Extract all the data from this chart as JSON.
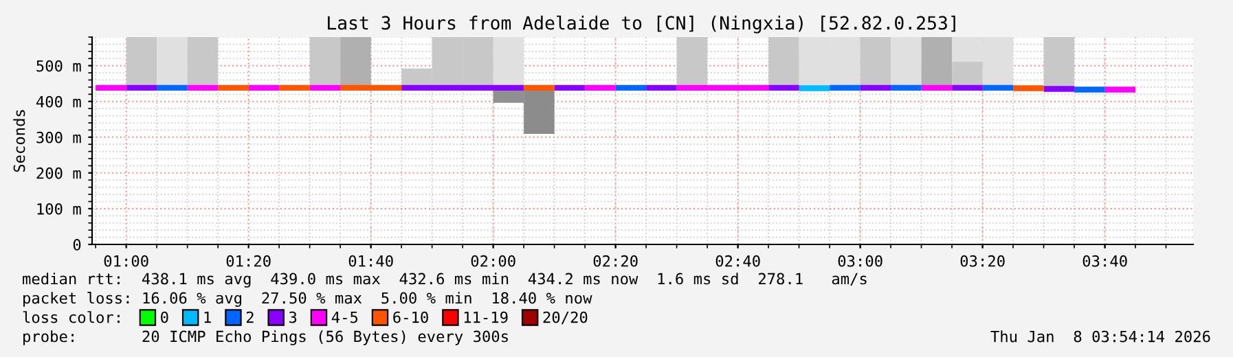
{
  "chart_data": {
    "type": "line",
    "title": "Last 3 Hours from Adelaide to [CN] (Ningxia) [52.82.0.253]",
    "ylabel": "Seconds",
    "legend_title": "loss color:",
    "legend": "bottom",
    "grid": true,
    "xlim": [
      0.907,
      3.907
    ],
    "xticks": [
      {
        "value": 1.0,
        "label": "01:00"
      },
      {
        "value": 1.3333,
        "label": "01:20"
      },
      {
        "value": 1.6667,
        "label": "01:40"
      },
      {
        "value": 2.0,
        "label": "02:00"
      },
      {
        "value": 2.3333,
        "label": "02:20"
      },
      {
        "value": 2.6667,
        "label": "02:40"
      },
      {
        "value": 3.0,
        "label": "03:00"
      },
      {
        "value": 3.3333,
        "label": "03:20"
      },
      {
        "value": 3.6667,
        "label": "03:40"
      }
    ],
    "ylim": [
      0,
      580
    ],
    "yticks": [
      0,
      {
        "value": 100,
        "label": "100 m"
      },
      {
        "value": 200,
        "label": "200 m"
      },
      {
        "value": 300,
        "label": "300 m"
      },
      {
        "value": 400,
        "label": "400 m"
      },
      {
        "value": 500,
        "label": "500 m"
      }
    ],
    "series": [
      {
        "type": "bar",
        "x": [
          1.0417,
          1.125,
          1.2083,
          1.5417,
          1.625,
          1.7917,
          1.875,
          1.9583,
          2.0417,
          2.5417,
          2.7917,
          2.875,
          2.9583,
          3.0417,
          3.125,
          3.2083,
          3.2917,
          3.375,
          3.5417
        ],
        "base": [
          438,
          438,
          438,
          438,
          438,
          438,
          438,
          438,
          438,
          438,
          438,
          438,
          438,
          438,
          438,
          438,
          438,
          438,
          438
        ],
        "values": [
          142,
          142,
          142,
          142,
          142,
          54,
          142,
          142,
          142,
          142,
          142,
          142,
          142,
          142,
          142,
          142,
          73,
          142,
          142
        ],
        "colors": [
          "#c8c8c8",
          "#e0e0e0",
          "#c8c8c8",
          "#c8c8c8",
          "#b0b0b0",
          "#c8c8c8",
          "#c8c8c8",
          "#c8c8c8",
          "#e0e0e0",
          "#c8c8c8",
          "#c8c8c8",
          "#e0e0e0",
          "#e0e0e0",
          "#c8c8c8",
          "#e0e0e0",
          "#b0b0b0",
          "#c8c8c8",
          "#e0e0e0",
          "#c8c8c8"
        ]
      },
      {
        "type": "bar",
        "x": [
          3.2917
        ],
        "base": [
          511
        ],
        "values": [
          69
        ],
        "colors": [
          "#e0e0e0"
        ]
      },
      {
        "type": "bar",
        "x": [
          2.0417,
          2.125
        ],
        "base": [
          396,
          309
        ],
        "values": [
          42,
          129
        ],
        "colors": [
          "#909090",
          "#8c8c8c"
        ]
      },
      {
        "name": "0",
        "color": "#00ff00"
      },
      {
        "name": "1",
        "color": "#00bbff",
        "x": [
          2.8333,
          2.9167
        ],
        "values": [
          437,
          437
        ]
      },
      {
        "name": "2",
        "color": "#0066ff",
        "x": [
          1.0833,
          1.1667,
          1.2,
          2.3333,
          2.4167,
          2.5,
          2.9167,
          3.0,
          3.04,
          3.0833,
          3.1667,
          3.2,
          3.3333,
          3.4167,
          3.5,
          3.5833,
          3.6667
        ],
        "values": [
          438,
          438,
          null,
          438,
          438,
          null,
          438,
          438,
          null,
          438,
          438,
          null,
          438,
          438,
          null,
          433,
          433
        ]
      },
      {
        "name": "3",
        "color": "#8800ff",
        "x": [
          1.0,
          1.0833,
          1.4,
          1.75,
          1.8333,
          1.9167,
          2.0,
          2.0833,
          2.12,
          2.1667,
          2.25,
          2.3,
          2.4167,
          2.5,
          2.6,
          2.75,
          2.8333,
          2.9,
          3.0,
          3.0833,
          3.2,
          3.25,
          3.3333,
          3.4,
          3.5,
          3.5833
        ],
        "values": [
          438,
          438,
          null,
          438,
          438,
          438,
          438,
          438,
          null,
          438,
          438,
          null,
          438,
          438,
          null,
          438,
          438,
          null,
          438,
          438,
          null,
          438,
          438,
          null,
          435,
          435
        ]
      },
      {
        "name": "4-5",
        "color": "#ff00ff",
        "x": [
          0.9167,
          1.0,
          1.1,
          1.1667,
          1.25,
          1.3,
          1.3333,
          1.4167,
          1.45,
          1.5,
          1.5833,
          2.0,
          2.25,
          2.3333,
          2.4,
          2.5,
          2.5833,
          2.6667,
          2.75,
          3.0,
          3.1667,
          3.25,
          3.5,
          3.6667,
          3.75
        ],
        "values": [
          438,
          438,
          null,
          438,
          438,
          null,
          438,
          438,
          null,
          438,
          438,
          null,
          438,
          438,
          null,
          438,
          438,
          438,
          438,
          null,
          438,
          438,
          null,
          433,
          433
        ]
      },
      {
        "name": "6-10",
        "color": "#ff5500",
        "x": [
          1.25,
          1.3333,
          1.38,
          1.4167,
          1.5,
          1.55,
          1.5833,
          1.6667,
          1.75,
          1.9,
          2.0833,
          2.1667,
          3.0,
          3.4167,
          3.5
        ],
        "values": [
          438,
          438,
          null,
          438,
          438,
          null,
          438,
          438,
          438,
          null,
          438,
          438,
          null,
          437,
          437
        ]
      },
      {
        "name": "11-19",
        "color": "#ff0000"
      },
      {
        "name": "20/20",
        "color": "#a10000"
      }
    ],
    "annotations": [
      "median rtt:  438.1 ms avg  439.0 ms max  432.6 ms min  434.2 ms now  1.6 ms sd  278.1   am/s",
      "packet loss: 16.06 % avg  27.50 % max  5.00 % min  18.40 % now",
      "probe:       20 ICMP Echo Pings (56 Bytes) every 300s",
      "Thu Jan  8 03:54:14 2026"
    ]
  }
}
